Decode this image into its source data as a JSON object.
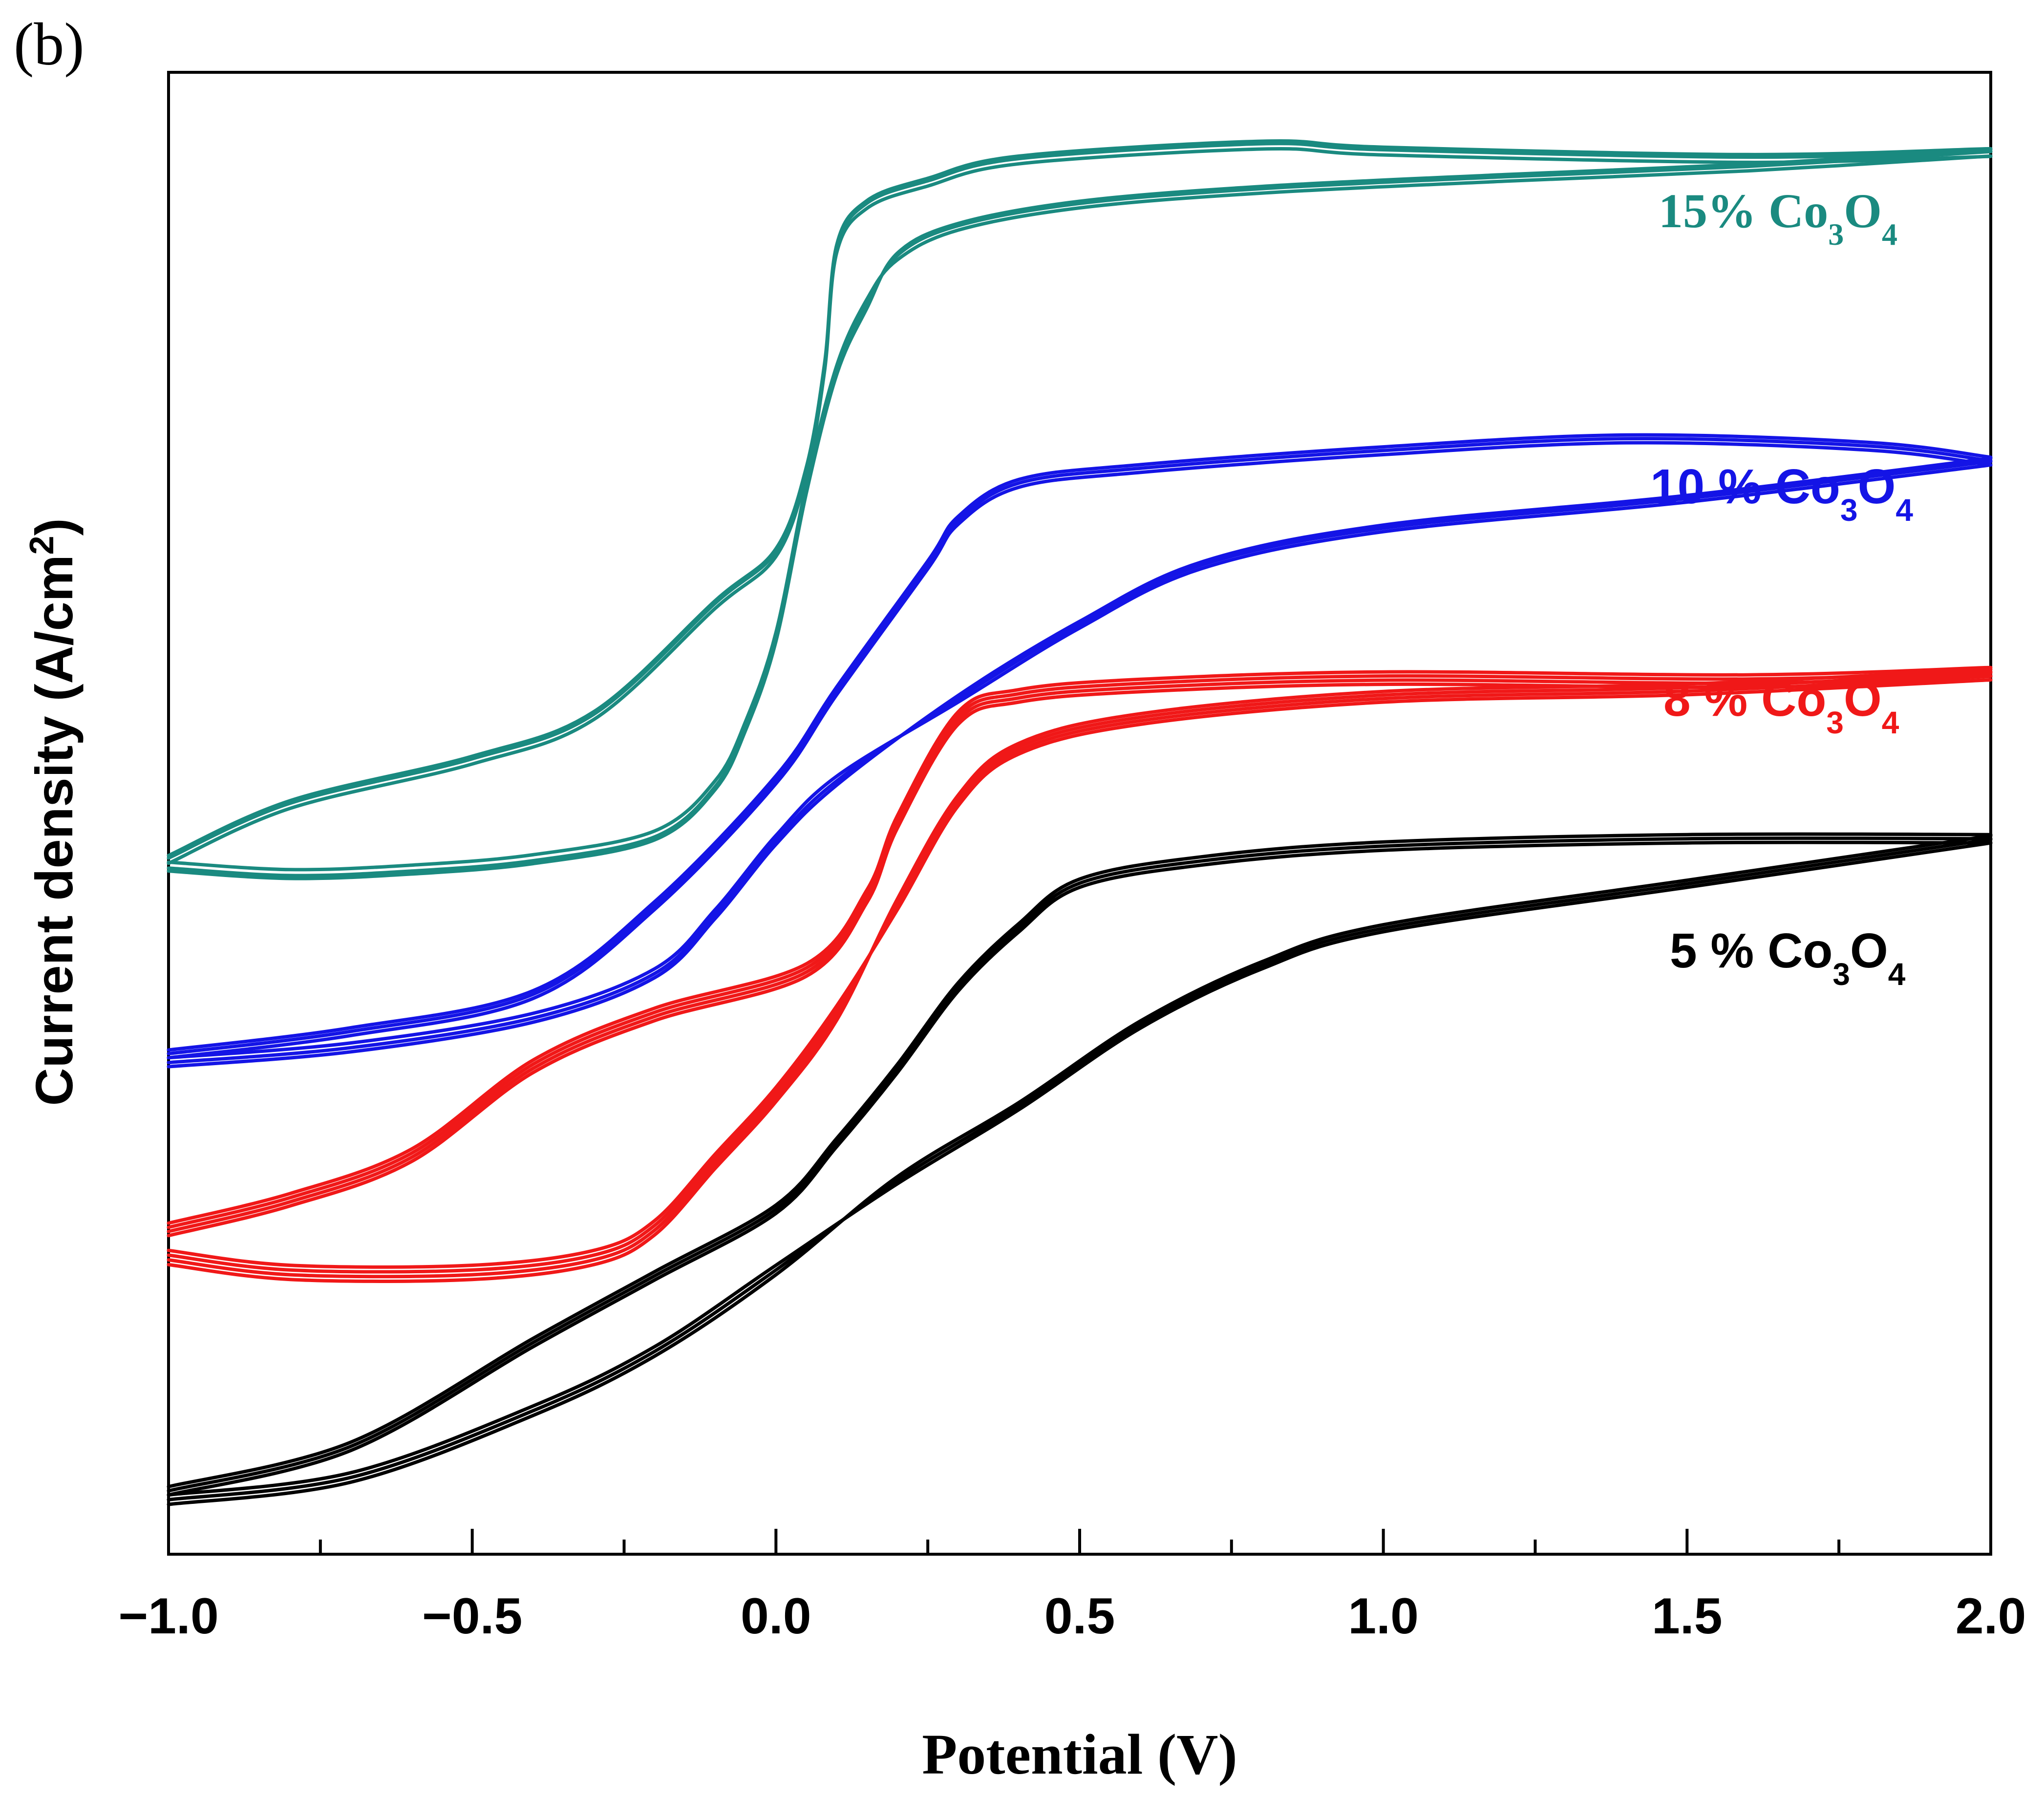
{
  "panel_label": "(b)",
  "colors": {
    "teal": "#1a8a80",
    "blue": "#1414e6",
    "red": "#f01818",
    "black": "#000000"
  },
  "chart_data": {
    "type": "line",
    "title": "",
    "xlabel": "Potential (V)",
    "ylabel": "Current density (A/cm",
    "ylabel_sup": "2",
    "ylabel_close": ")",
    "xlim": [
      -1.0,
      2.0
    ],
    "ylim": [
      0,
      100
    ],
    "y_ticks_shown": false,
    "x_ticks": [
      {
        "value": -1.0,
        "label": "−1.0"
      },
      {
        "value": -0.5,
        "label": "−0.5"
      },
      {
        "value": 0.0,
        "label": "0.0"
      },
      {
        "value": 0.5,
        "label": "0.5"
      },
      {
        "value": 1.0,
        "label": "1.0"
      },
      {
        "value": 1.5,
        "label": "1.5"
      },
      {
        "value": 2.0,
        "label": "2.0"
      }
    ],
    "x_minor_step": 0.25,
    "series": [
      {
        "name": "15% Co3O4",
        "label_main": "15% Co",
        "sub1": "3",
        "label_mid": "O",
        "sub2": "4",
        "label_font": "serif",
        "color_key": "teal",
        "cycles": 3,
        "cycle_offset": [
          0.5,
          -0.5,
          1.0
        ],
        "forward": [
          [
            -1.0,
            46.5
          ],
          [
            -0.8,
            46.0
          ],
          [
            -0.6,
            46.3
          ],
          [
            -0.4,
            47.0
          ],
          [
            -0.2,
            48.6
          ],
          [
            -0.1,
            52.0
          ],
          [
            -0.05,
            56.0
          ],
          [
            0.0,
            62.0
          ],
          [
            0.05,
            72.0
          ],
          [
            0.1,
            80.0
          ],
          [
            0.15,
            84.5
          ],
          [
            0.2,
            87.5
          ],
          [
            0.3,
            89.5
          ],
          [
            0.5,
            91.0
          ],
          [
            0.8,
            92.0
          ],
          [
            1.2,
            92.8
          ],
          [
            1.6,
            93.5
          ],
          [
            2.0,
            94.5
          ]
        ],
        "backward": [
          [
            2.0,
            94.5
          ],
          [
            1.6,
            94.1
          ],
          [
            1.0,
            94.6
          ],
          [
            0.8,
            95.0
          ],
          [
            0.4,
            94.0
          ],
          [
            0.25,
            92.5
          ],
          [
            0.15,
            91.0
          ],
          [
            0.1,
            88.0
          ],
          [
            0.08,
            80.0
          ],
          [
            0.05,
            73.0
          ],
          [
            0.0,
            67.5
          ],
          [
            -0.1,
            64.0
          ],
          [
            -0.3,
            56.5
          ],
          [
            -0.5,
            53.5
          ],
          [
            -0.8,
            50.5
          ],
          [
            -1.0,
            46.8
          ]
        ]
      },
      {
        "name": "10 % Co3O4",
        "label_main": "10 % Co",
        "sub1": "3",
        "label_mid": "O",
        "sub2": "4",
        "label_font": "sans",
        "color_key": "blue",
        "cycles": 3,
        "cycle_offset": [
          0.0,
          0.8,
          1.5
        ],
        "forward": [
          [
            -1.0,
            33.5
          ],
          [
            -0.7,
            34.5
          ],
          [
            -0.4,
            36.5
          ],
          [
            -0.2,
            39.5
          ],
          [
            -0.1,
            43.5
          ],
          [
            0.0,
            48.5
          ],
          [
            0.1,
            52.5
          ],
          [
            0.3,
            57.5
          ],
          [
            0.5,
            62.5
          ],
          [
            0.7,
            66.5
          ],
          [
            1.0,
            69.0
          ],
          [
            1.5,
            71.0
          ],
          [
            2.0,
            73.5
          ]
        ],
        "backward": [
          [
            2.0,
            73.5
          ],
          [
            1.8,
            74.5
          ],
          [
            1.4,
            75.0
          ],
          [
            1.0,
            74.2
          ],
          [
            0.6,
            73.0
          ],
          [
            0.4,
            72.0
          ],
          [
            0.3,
            69.5
          ],
          [
            0.25,
            66.5
          ],
          [
            0.1,
            58.0
          ],
          [
            0.0,
            52.0
          ],
          [
            -0.2,
            43.5
          ],
          [
            -0.4,
            37.5
          ],
          [
            -0.7,
            35.0
          ],
          [
            -1.0,
            33.5
          ]
        ]
      },
      {
        "name": "8 % Co3O4",
        "label_main": "8 % Co",
        "sub1": "3",
        "label_mid": "O",
        "sub2": "4",
        "label_font": "sans",
        "color_key": "red",
        "cycles": 4,
        "cycle_offset": [
          0.0,
          0.8,
          1.6,
          2.4
        ],
        "forward": [
          [
            -1.0,
            20.5
          ],
          [
            -0.8,
            19.5
          ],
          [
            -0.5,
            19.5
          ],
          [
            -0.3,
            20.5
          ],
          [
            -0.2,
            22.5
          ],
          [
            -0.1,
            27.0
          ],
          [
            0.0,
            31.5
          ],
          [
            0.1,
            37.0
          ],
          [
            0.2,
            43.5
          ],
          [
            0.3,
            50.5
          ],
          [
            0.4,
            54.0
          ],
          [
            0.6,
            56.0
          ],
          [
            1.0,
            57.5
          ],
          [
            1.5,
            58.0
          ],
          [
            2.0,
            59.0
          ]
        ],
        "backward": [
          [
            2.0,
            59.0
          ],
          [
            1.6,
            58.5
          ],
          [
            1.0,
            58.7
          ],
          [
            0.6,
            58.2
          ],
          [
            0.4,
            57.5
          ],
          [
            0.3,
            56.0
          ],
          [
            0.2,
            49.0
          ],
          [
            0.15,
            44.0
          ],
          [
            0.05,
            39.0
          ],
          [
            -0.2,
            36.0
          ],
          [
            -0.4,
            32.5
          ],
          [
            -0.6,
            26.5
          ],
          [
            -0.8,
            23.5
          ],
          [
            -1.0,
            21.5
          ]
        ]
      },
      {
        "name": "5 % Co3O4",
        "label_main": "5 % Co",
        "sub1": "3",
        "label_mid": "O",
        "sub2": "4",
        "label_font": "sans",
        "color_key": "black",
        "cycles": 3,
        "cycle_offset": [
          0.0,
          0.8,
          1.6
        ],
        "forward": [
          [
            -1.0,
            4.0
          ],
          [
            -0.7,
            5.5
          ],
          [
            -0.4,
            10.0
          ],
          [
            -0.2,
            14.0
          ],
          [
            0.0,
            19.5
          ],
          [
            0.2,
            25.0
          ],
          [
            0.4,
            30.0
          ],
          [
            0.6,
            35.5
          ],
          [
            0.8,
            39.5
          ],
          [
            1.0,
            42.0
          ],
          [
            1.5,
            45.0
          ],
          [
            2.0,
            48.0
          ]
        ],
        "backward": [
          [
            2.0,
            48.0
          ],
          [
            1.5,
            48.0
          ],
          [
            1.0,
            47.5
          ],
          [
            0.7,
            46.5
          ],
          [
            0.5,
            45.0
          ],
          [
            0.4,
            42.0
          ],
          [
            0.3,
            38.0
          ],
          [
            0.2,
            32.5
          ],
          [
            0.1,
            27.5
          ],
          [
            0.0,
            23.0
          ],
          [
            -0.2,
            18.5
          ],
          [
            -0.4,
            14.0
          ],
          [
            -0.7,
            7.0
          ],
          [
            -1.0,
            4.0
          ]
        ]
      }
    ]
  }
}
